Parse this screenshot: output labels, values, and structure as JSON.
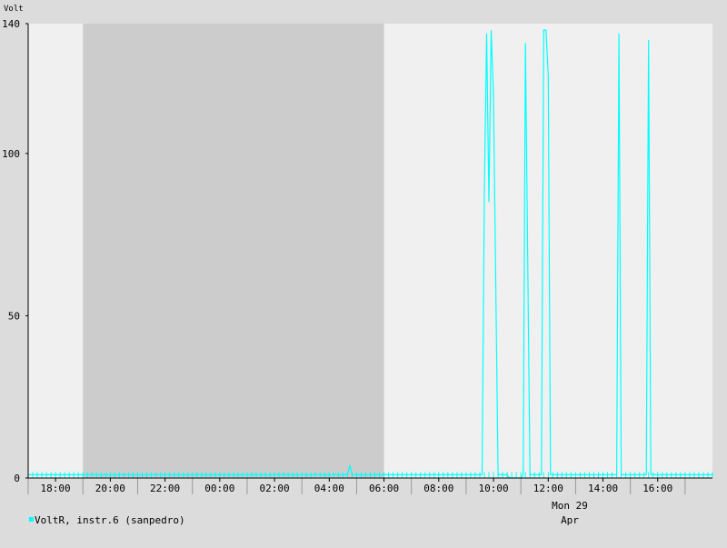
{
  "chart_data": {
    "type": "line",
    "ylabel": "Volt",
    "ylim": [
      0,
      140
    ],
    "yticks": [
      0,
      50,
      100,
      140
    ],
    "xlim_hours": [
      17.0,
      18.0
    ],
    "xticks": [
      {
        "label": "18:00"
      },
      {
        "label": "20:00"
      },
      {
        "label": "22:00"
      },
      {
        "label": "00:00"
      },
      {
        "label": "02:00"
      },
      {
        "label": "04:00"
      },
      {
        "label": "06:00"
      },
      {
        "label": "08:00"
      },
      {
        "label": "10:00"
      },
      {
        "label": "12:00"
      },
      {
        "label": "14:00"
      },
      {
        "label": "16:00"
      }
    ],
    "date_label": [
      "Mon 29",
      "Apr"
    ],
    "night_band": [
      "19:00",
      "06:00"
    ],
    "colors": {
      "background": "#dcdcdc",
      "plot_day": "#f0f0f0",
      "plot_night": "#cccccc",
      "series": "#00ffff",
      "grid": "#cccccc"
    },
    "series": [
      {
        "name": "VoltR, instr.6 (sanpedro)",
        "color": "#00ffff",
        "points": [
          [
            "17:00",
            1
          ],
          [
            "04:40",
            1
          ],
          [
            "04:45",
            4
          ],
          [
            "04:50",
            1
          ],
          [
            "09:35",
            1
          ],
          [
            "09:40",
            88
          ],
          [
            "09:45",
            137
          ],
          [
            "09:50",
            85
          ],
          [
            "09:55",
            138
          ],
          [
            "10:00",
            118
          ],
          [
            "10:10",
            1
          ],
          [
            "10:30",
            1
          ],
          [
            "10:35",
            0
          ],
          [
            "11:00",
            0
          ],
          [
            "11:05",
            1
          ],
          [
            "11:10",
            134
          ],
          [
            "11:20",
            1
          ],
          [
            "11:45",
            1
          ],
          [
            "11:50",
            138
          ],
          [
            "11:55",
            138
          ],
          [
            "12:00",
            124
          ],
          [
            "12:05",
            1
          ],
          [
            "14:30",
            1
          ],
          [
            "14:35",
            137
          ],
          [
            "14:40",
            1
          ],
          [
            "15:35",
            1
          ],
          [
            "15:40",
            135
          ],
          [
            "15:45",
            1
          ],
          [
            "18:00",
            1
          ]
        ]
      }
    ]
  }
}
